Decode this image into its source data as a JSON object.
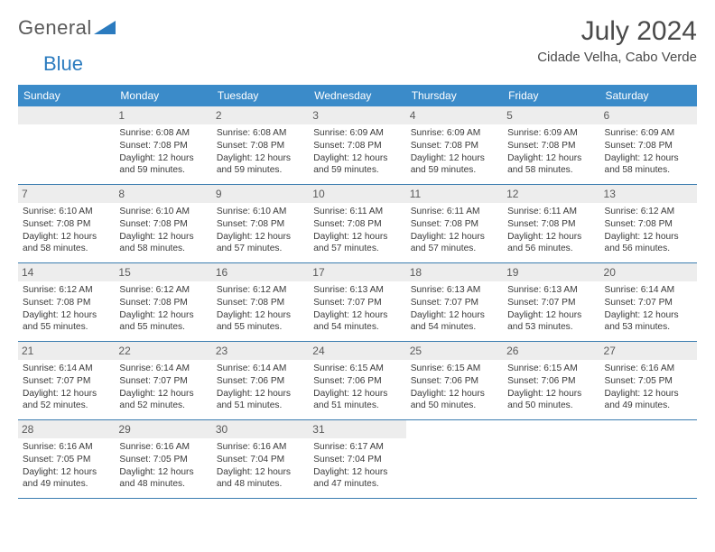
{
  "brand": {
    "text1": "General",
    "text2": "Blue"
  },
  "colors": {
    "header_bg": "#3b8bc9",
    "row_border": "#3b7db0",
    "daynum_bg": "#ededed",
    "text": "#3a3a3a",
    "brand_blue": "#2b7bbf"
  },
  "title": "July 2024",
  "location": "Cidade Velha, Cabo Verde",
  "weekdays": [
    "Sunday",
    "Monday",
    "Tuesday",
    "Wednesday",
    "Thursday",
    "Friday",
    "Saturday"
  ],
  "start_offset": 1,
  "days": [
    {
      "n": 1,
      "sr": "6:08 AM",
      "ss": "7:08 PM",
      "dl": "12 hours and 59 minutes."
    },
    {
      "n": 2,
      "sr": "6:08 AM",
      "ss": "7:08 PM",
      "dl": "12 hours and 59 minutes."
    },
    {
      "n": 3,
      "sr": "6:09 AM",
      "ss": "7:08 PM",
      "dl": "12 hours and 59 minutes."
    },
    {
      "n": 4,
      "sr": "6:09 AM",
      "ss": "7:08 PM",
      "dl": "12 hours and 59 minutes."
    },
    {
      "n": 5,
      "sr": "6:09 AM",
      "ss": "7:08 PM",
      "dl": "12 hours and 58 minutes."
    },
    {
      "n": 6,
      "sr": "6:09 AM",
      "ss": "7:08 PM",
      "dl": "12 hours and 58 minutes."
    },
    {
      "n": 7,
      "sr": "6:10 AM",
      "ss": "7:08 PM",
      "dl": "12 hours and 58 minutes."
    },
    {
      "n": 8,
      "sr": "6:10 AM",
      "ss": "7:08 PM",
      "dl": "12 hours and 58 minutes."
    },
    {
      "n": 9,
      "sr": "6:10 AM",
      "ss": "7:08 PM",
      "dl": "12 hours and 57 minutes."
    },
    {
      "n": 10,
      "sr": "6:11 AM",
      "ss": "7:08 PM",
      "dl": "12 hours and 57 minutes."
    },
    {
      "n": 11,
      "sr": "6:11 AM",
      "ss": "7:08 PM",
      "dl": "12 hours and 57 minutes."
    },
    {
      "n": 12,
      "sr": "6:11 AM",
      "ss": "7:08 PM",
      "dl": "12 hours and 56 minutes."
    },
    {
      "n": 13,
      "sr": "6:12 AM",
      "ss": "7:08 PM",
      "dl": "12 hours and 56 minutes."
    },
    {
      "n": 14,
      "sr": "6:12 AM",
      "ss": "7:08 PM",
      "dl": "12 hours and 55 minutes."
    },
    {
      "n": 15,
      "sr": "6:12 AM",
      "ss": "7:08 PM",
      "dl": "12 hours and 55 minutes."
    },
    {
      "n": 16,
      "sr": "6:12 AM",
      "ss": "7:08 PM",
      "dl": "12 hours and 55 minutes."
    },
    {
      "n": 17,
      "sr": "6:13 AM",
      "ss": "7:07 PM",
      "dl": "12 hours and 54 minutes."
    },
    {
      "n": 18,
      "sr": "6:13 AM",
      "ss": "7:07 PM",
      "dl": "12 hours and 54 minutes."
    },
    {
      "n": 19,
      "sr": "6:13 AM",
      "ss": "7:07 PM",
      "dl": "12 hours and 53 minutes."
    },
    {
      "n": 20,
      "sr": "6:14 AM",
      "ss": "7:07 PM",
      "dl": "12 hours and 53 minutes."
    },
    {
      "n": 21,
      "sr": "6:14 AM",
      "ss": "7:07 PM",
      "dl": "12 hours and 52 minutes."
    },
    {
      "n": 22,
      "sr": "6:14 AM",
      "ss": "7:07 PM",
      "dl": "12 hours and 52 minutes."
    },
    {
      "n": 23,
      "sr": "6:14 AM",
      "ss": "7:06 PM",
      "dl": "12 hours and 51 minutes."
    },
    {
      "n": 24,
      "sr": "6:15 AM",
      "ss": "7:06 PM",
      "dl": "12 hours and 51 minutes."
    },
    {
      "n": 25,
      "sr": "6:15 AM",
      "ss": "7:06 PM",
      "dl": "12 hours and 50 minutes."
    },
    {
      "n": 26,
      "sr": "6:15 AM",
      "ss": "7:06 PM",
      "dl": "12 hours and 50 minutes."
    },
    {
      "n": 27,
      "sr": "6:16 AM",
      "ss": "7:05 PM",
      "dl": "12 hours and 49 minutes."
    },
    {
      "n": 28,
      "sr": "6:16 AM",
      "ss": "7:05 PM",
      "dl": "12 hours and 49 minutes."
    },
    {
      "n": 29,
      "sr": "6:16 AM",
      "ss": "7:05 PM",
      "dl": "12 hours and 48 minutes."
    },
    {
      "n": 30,
      "sr": "6:16 AM",
      "ss": "7:04 PM",
      "dl": "12 hours and 48 minutes."
    },
    {
      "n": 31,
      "sr": "6:17 AM",
      "ss": "7:04 PM",
      "dl": "12 hours and 47 minutes."
    }
  ],
  "labels": {
    "sunrise": "Sunrise:",
    "sunset": "Sunset:",
    "daylight": "Daylight:"
  }
}
